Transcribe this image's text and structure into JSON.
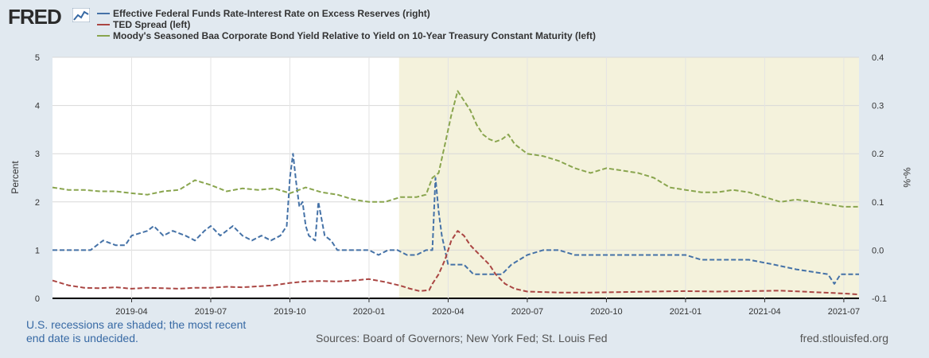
{
  "brand": {
    "logo_text": "FRED",
    "logo_icon": "chart-line-icon"
  },
  "colors": {
    "background": "#e1e9f0",
    "plot_background": "#ffffff",
    "recession_shade": "#f4f2dc",
    "blue": "#4572a7",
    "red": "#aa4643",
    "green": "#89a54e"
  },
  "chart_data": {
    "type": "line",
    "title": "",
    "x_tick_labels": [
      "2019-04",
      "2019-07",
      "2019-10",
      "2020-01",
      "2020-04",
      "2020-07",
      "2020-10",
      "2021-01",
      "2021-04",
      "2021-07"
    ],
    "x_tick_values": [
      2019.25,
      2019.5,
      2019.75,
      2020.0,
      2020.25,
      2020.5,
      2020.75,
      2021.0,
      2021.25,
      2021.5
    ],
    "xlim": [
      2019.0,
      2021.548
    ],
    "recession": {
      "start": 2020.095,
      "end": 2021.548
    },
    "y_left": {
      "label": "Percent",
      "lim": [
        0,
        5
      ],
      "ticks": [
        0,
        1,
        2,
        3,
        4,
        5
      ]
    },
    "y_right": {
      "label": "%-%",
      "lim": [
        -0.1,
        0.4
      ],
      "ticks": [
        -0.1,
        0.0,
        0.1,
        0.2,
        0.3,
        0.4
      ]
    },
    "series": [
      {
        "name": "Effective Federal Funds Rate-Interest Rate on Excess Reserves (right)",
        "color": "#4572a7",
        "axis": "right",
        "points": [
          [
            2019.0,
            0.0
          ],
          [
            2019.12,
            0.0
          ],
          [
            2019.14,
            0.01
          ],
          [
            2019.16,
            0.02
          ],
          [
            2019.2,
            0.01
          ],
          [
            2019.23,
            0.01
          ],
          [
            2019.25,
            0.03
          ],
          [
            2019.3,
            0.04
          ],
          [
            2019.32,
            0.05
          ],
          [
            2019.35,
            0.03
          ],
          [
            2019.38,
            0.04
          ],
          [
            2019.42,
            0.03
          ],
          [
            2019.45,
            0.02
          ],
          [
            2019.48,
            0.04
          ],
          [
            2019.5,
            0.05
          ],
          [
            2019.53,
            0.03
          ],
          [
            2019.57,
            0.05
          ],
          [
            2019.6,
            0.03
          ],
          [
            2019.63,
            0.02
          ],
          [
            2019.66,
            0.03
          ],
          [
            2019.69,
            0.02
          ],
          [
            2019.72,
            0.03
          ],
          [
            2019.74,
            0.05
          ],
          [
            2019.75,
            0.15
          ],
          [
            2019.76,
            0.2
          ],
          [
            2019.77,
            0.14
          ],
          [
            2019.78,
            0.09
          ],
          [
            2019.79,
            0.1
          ],
          [
            2019.8,
            0.05
          ],
          [
            2019.81,
            0.03
          ],
          [
            2019.83,
            0.02
          ],
          [
            2019.84,
            0.1
          ],
          [
            2019.86,
            0.03
          ],
          [
            2019.88,
            0.02
          ],
          [
            2019.9,
            0.0
          ],
          [
            2019.95,
            0.0
          ],
          [
            2020.0,
            0.0
          ],
          [
            2020.03,
            -0.01
          ],
          [
            2020.06,
            0.0
          ],
          [
            2020.09,
            0.0
          ],
          [
            2020.12,
            -0.01
          ],
          [
            2020.15,
            -0.01
          ],
          [
            2020.18,
            0.0
          ],
          [
            2020.2,
            0.0
          ],
          [
            2020.21,
            0.15
          ],
          [
            2020.22,
            0.08
          ],
          [
            2020.23,
            0.03
          ],
          [
            2020.24,
            0.0
          ],
          [
            2020.25,
            -0.03
          ],
          [
            2020.3,
            -0.03
          ],
          [
            2020.33,
            -0.05
          ],
          [
            2020.38,
            -0.05
          ],
          [
            2020.42,
            -0.05
          ],
          [
            2020.45,
            -0.03
          ],
          [
            2020.5,
            -0.01
          ],
          [
            2020.55,
            0.0
          ],
          [
            2020.6,
            0.0
          ],
          [
            2020.65,
            -0.01
          ],
          [
            2020.7,
            -0.01
          ],
          [
            2020.8,
            -0.01
          ],
          [
            2020.9,
            -0.01
          ],
          [
            2021.0,
            -0.01
          ],
          [
            2021.05,
            -0.02
          ],
          [
            2021.1,
            -0.02
          ],
          [
            2021.2,
            -0.02
          ],
          [
            2021.28,
            -0.03
          ],
          [
            2021.35,
            -0.04
          ],
          [
            2021.45,
            -0.05
          ],
          [
            2021.47,
            -0.07
          ],
          [
            2021.49,
            -0.05
          ],
          [
            2021.548,
            -0.05
          ]
        ]
      },
      {
        "name": "TED Spread (left)",
        "color": "#aa4643",
        "axis": "left",
        "points": [
          [
            2019.0,
            0.37
          ],
          [
            2019.05,
            0.27
          ],
          [
            2019.1,
            0.22
          ],
          [
            2019.15,
            0.21
          ],
          [
            2019.2,
            0.23
          ],
          [
            2019.25,
            0.2
          ],
          [
            2019.3,
            0.22
          ],
          [
            2019.35,
            0.21
          ],
          [
            2019.4,
            0.2
          ],
          [
            2019.45,
            0.22
          ],
          [
            2019.5,
            0.22
          ],
          [
            2019.55,
            0.24
          ],
          [
            2019.6,
            0.23
          ],
          [
            2019.65,
            0.25
          ],
          [
            2019.7,
            0.27
          ],
          [
            2019.75,
            0.32
          ],
          [
            2019.8,
            0.35
          ],
          [
            2019.85,
            0.36
          ],
          [
            2019.9,
            0.35
          ],
          [
            2019.95,
            0.37
          ],
          [
            2020.0,
            0.4
          ],
          [
            2020.05,
            0.34
          ],
          [
            2020.1,
            0.26
          ],
          [
            2020.13,
            0.2
          ],
          [
            2020.16,
            0.15
          ],
          [
            2020.19,
            0.17
          ],
          [
            2020.2,
            0.3
          ],
          [
            2020.22,
            0.5
          ],
          [
            2020.24,
            0.8
          ],
          [
            2020.26,
            1.2
          ],
          [
            2020.28,
            1.4
          ],
          [
            2020.3,
            1.3
          ],
          [
            2020.32,
            1.1
          ],
          [
            2020.35,
            0.9
          ],
          [
            2020.38,
            0.7
          ],
          [
            2020.4,
            0.5
          ],
          [
            2020.43,
            0.3
          ],
          [
            2020.46,
            0.2
          ],
          [
            2020.5,
            0.14
          ],
          [
            2020.6,
            0.12
          ],
          [
            2020.7,
            0.12
          ],
          [
            2020.8,
            0.13
          ],
          [
            2020.9,
            0.14
          ],
          [
            2021.0,
            0.15
          ],
          [
            2021.1,
            0.14
          ],
          [
            2021.2,
            0.15
          ],
          [
            2021.3,
            0.16
          ],
          [
            2021.4,
            0.13
          ],
          [
            2021.5,
            0.1
          ],
          [
            2021.548,
            0.08
          ]
        ]
      },
      {
        "name": "Moody's Seasoned Baa Corporate Bond Yield Relative to Yield on 10-Year Treasury Constant Maturity (left)",
        "color": "#89a54e",
        "axis": "left",
        "points": [
          [
            2019.0,
            2.3
          ],
          [
            2019.05,
            2.25
          ],
          [
            2019.1,
            2.25
          ],
          [
            2019.15,
            2.22
          ],
          [
            2019.2,
            2.22
          ],
          [
            2019.25,
            2.18
          ],
          [
            2019.3,
            2.15
          ],
          [
            2019.35,
            2.22
          ],
          [
            2019.4,
            2.25
          ],
          [
            2019.45,
            2.45
          ],
          [
            2019.5,
            2.35
          ],
          [
            2019.55,
            2.22
          ],
          [
            2019.6,
            2.28
          ],
          [
            2019.65,
            2.25
          ],
          [
            2019.7,
            2.28
          ],
          [
            2019.75,
            2.18
          ],
          [
            2019.8,
            2.3
          ],
          [
            2019.85,
            2.2
          ],
          [
            2019.9,
            2.15
          ],
          [
            2019.95,
            2.05
          ],
          [
            2020.0,
            2.0
          ],
          [
            2020.05,
            2.0
          ],
          [
            2020.1,
            2.1
          ],
          [
            2020.15,
            2.1
          ],
          [
            2020.18,
            2.15
          ],
          [
            2020.2,
            2.5
          ],
          [
            2020.22,
            2.6
          ],
          [
            2020.24,
            3.2
          ],
          [
            2020.26,
            3.8
          ],
          [
            2020.28,
            4.3
          ],
          [
            2020.3,
            4.1
          ],
          [
            2020.32,
            3.9
          ],
          [
            2020.34,
            3.6
          ],
          [
            2020.36,
            3.4
          ],
          [
            2020.38,
            3.3
          ],
          [
            2020.4,
            3.25
          ],
          [
            2020.42,
            3.3
          ],
          [
            2020.44,
            3.4
          ],
          [
            2020.46,
            3.2
          ],
          [
            2020.5,
            3.0
          ],
          [
            2020.55,
            2.95
          ],
          [
            2020.6,
            2.85
          ],
          [
            2020.65,
            2.7
          ],
          [
            2020.7,
            2.6
          ],
          [
            2020.75,
            2.7
          ],
          [
            2020.8,
            2.65
          ],
          [
            2020.85,
            2.6
          ],
          [
            2020.9,
            2.5
          ],
          [
            2020.95,
            2.3
          ],
          [
            2021.0,
            2.25
          ],
          [
            2021.05,
            2.2
          ],
          [
            2021.1,
            2.2
          ],
          [
            2021.15,
            2.25
          ],
          [
            2021.2,
            2.2
          ],
          [
            2021.25,
            2.1
          ],
          [
            2021.3,
            2.0
          ],
          [
            2021.35,
            2.05
          ],
          [
            2021.4,
            2.0
          ],
          [
            2021.45,
            1.95
          ],
          [
            2021.5,
            1.9
          ],
          [
            2021.548,
            1.9
          ]
        ]
      }
    ]
  },
  "footer": {
    "recession_note": "U.S. recessions are shaded; the most recent end date is undecided.",
    "sources": "Sources: Board of Governors; New York Fed; St. Louis Fed",
    "site": "fred.stlouisfed.org"
  }
}
